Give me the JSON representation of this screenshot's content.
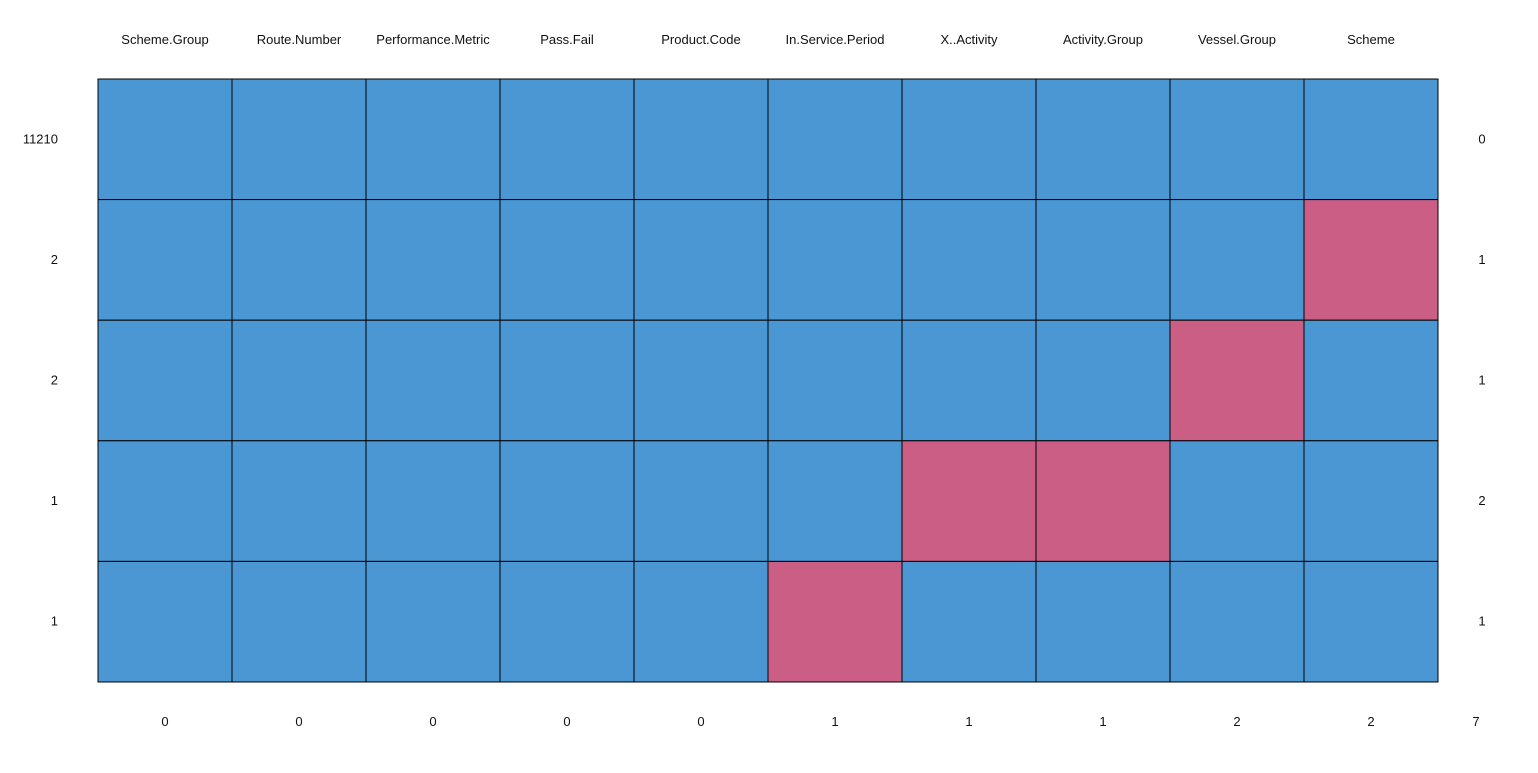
{
  "chart_data": {
    "type": "heatmap",
    "title": "",
    "xlabel": "",
    "ylabel": "",
    "columns": [
      "Scheme.Group",
      "Route.Number",
      "Performance.Metric",
      "Pass.Fail",
      "Product.Code",
      "In.Service.Period",
      "X..Activity",
      "Activity.Group",
      "Vessel.Group",
      "Scheme"
    ],
    "row_counts": [
      "11210",
      "2",
      "2",
      "1",
      "1"
    ],
    "row_missing": [
      "0",
      "1",
      "1",
      "2",
      "1"
    ],
    "column_missing": [
      "0",
      "0",
      "0",
      "0",
      "0",
      "1",
      "1",
      "1",
      "2",
      "2"
    ],
    "total_missing": "7",
    "matrix": [
      [
        0,
        0,
        0,
        0,
        0,
        0,
        0,
        0,
        0,
        0
      ],
      [
        0,
        0,
        0,
        0,
        0,
        0,
        0,
        0,
        0,
        1
      ],
      [
        0,
        0,
        0,
        0,
        0,
        0,
        0,
        0,
        1,
        0
      ],
      [
        0,
        0,
        0,
        0,
        0,
        0,
        1,
        1,
        0,
        0
      ],
      [
        0,
        0,
        0,
        0,
        0,
        1,
        0,
        0,
        0,
        0
      ]
    ],
    "colors": {
      "observed": "#4B97D4",
      "missing": "#CB5E84",
      "border": "#000000"
    },
    "grid": true,
    "legend": "none"
  }
}
